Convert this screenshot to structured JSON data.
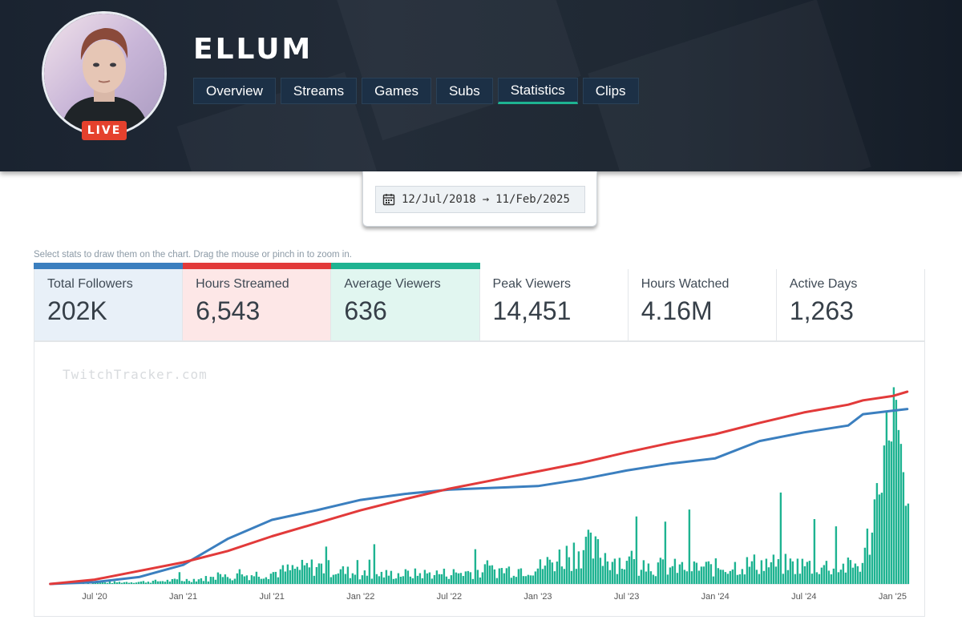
{
  "channel": {
    "name": "ELLUM",
    "live_badge": "LIVE"
  },
  "tabs": [
    {
      "label": "Overview"
    },
    {
      "label": "Streams"
    },
    {
      "label": "Games"
    },
    {
      "label": "Subs"
    },
    {
      "label": "Statistics",
      "active": true
    },
    {
      "label": "Clips"
    }
  ],
  "date_range": {
    "start": "12/Jul/2018",
    "arrow": "→",
    "end": "11/Feb/2025"
  },
  "hint": "Select stats to draw them on the chart. Drag the mouse or pinch in to zoom in.",
  "stats": [
    {
      "label": "Total Followers",
      "value": "202K",
      "selected": true,
      "color": "#3b7fbf",
      "bg": "#e8f0f8"
    },
    {
      "label": "Hours Streamed",
      "value": "6,543",
      "selected": true,
      "color": "#e23a3a",
      "bg": "#fde7e7"
    },
    {
      "label": "Average Viewers",
      "value": "636",
      "selected": true,
      "color": "#1eb391",
      "bg": "#e1f6f0"
    },
    {
      "label": "Peak Viewers",
      "value": "14,451",
      "selected": false
    },
    {
      "label": "Hours Watched",
      "value": "4.16M",
      "selected": false
    },
    {
      "label": "Active Days",
      "value": "1,263",
      "selected": false
    }
  ],
  "watermark": "TwitchTracker.com",
  "chart_data": {
    "type": "line",
    "x_ticks": [
      "Jul '20",
      "Jan '21",
      "Jul '21",
      "Jan '22",
      "Jul '22",
      "Jan '23",
      "Jul '23",
      "Jan '24",
      "Jul '24",
      "Jan '25"
    ],
    "x": [
      "2020-04",
      "2020-07",
      "2020-10",
      "2021-01",
      "2021-04",
      "2021-07",
      "2021-10",
      "2022-01",
      "2022-04",
      "2022-07",
      "2022-10",
      "2023-01",
      "2023-04",
      "2023-07",
      "2023-10",
      "2024-01",
      "2024-04",
      "2024-07",
      "2024-10",
      "2024-11",
      "2025-01",
      "2025-02"
    ],
    "series": [
      {
        "name": "Total Followers",
        "color": "#3b7fbf",
        "kind": "line",
        "values": [
          0,
          2,
          8,
          22,
          52,
          74,
          85,
          97,
          104,
          109,
          111,
          113,
          121,
          131,
          139,
          145,
          165,
          175,
          183,
          196,
          200,
          202
        ]
      },
      {
        "name": "Hours Streamed",
        "color": "#e23a3a",
        "kind": "line",
        "values": [
          0,
          5,
          15,
          25,
          38,
          55,
          70,
          85,
          98,
          110,
          120,
          130,
          140,
          152,
          163,
          173,
          186,
          198,
          207,
          212,
          217,
          222
        ]
      },
      {
        "name": "Average Viewers",
        "color": "#1eb391",
        "kind": "bar",
        "values": [
          0,
          40,
          60,
          110,
          200,
          320,
          500,
          260,
          280,
          300,
          380,
          460,
          1050,
          560,
          460,
          460,
          580,
          520,
          480,
          600,
          5600,
          1600
        ]
      }
    ],
    "grid": false,
    "legend": "none"
  }
}
